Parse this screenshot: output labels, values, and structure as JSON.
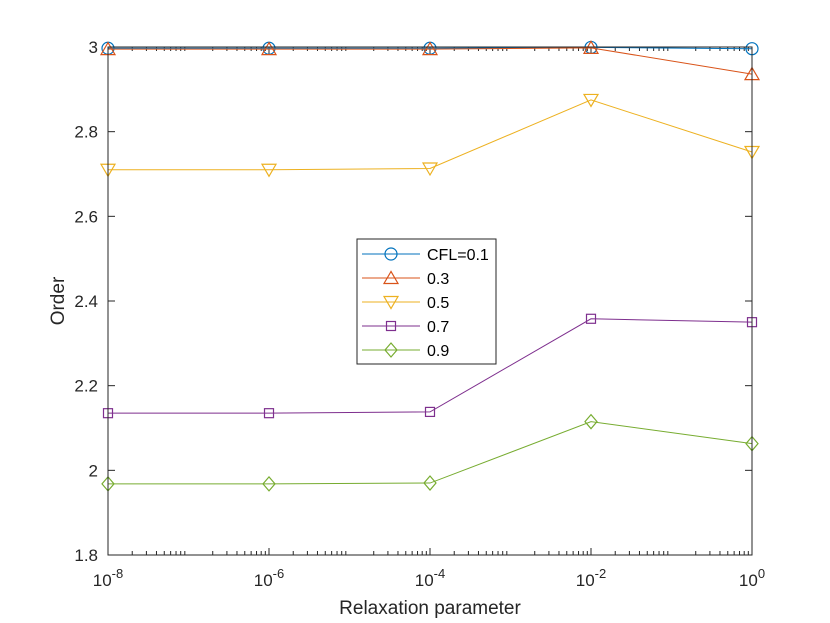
{
  "chart_data": {
    "type": "line",
    "xscale": "log",
    "x": [
      1e-08,
      1e-06,
      0.0001,
      0.01,
      1
    ],
    "x_tick_labels": [
      {
        "base": "10",
        "exp": "-8"
      },
      {
        "base": "10",
        "exp": "-6"
      },
      {
        "base": "10",
        "exp": "-4"
      },
      {
        "base": "10",
        "exp": "-2"
      },
      {
        "base": "10",
        "exp": "0"
      }
    ],
    "xlim_exp": [
      -8,
      0
    ],
    "ylim": [
      1.8,
      3.0
    ],
    "y_ticks": [
      1.8,
      2.0,
      2.2,
      2.4,
      2.6,
      2.8,
      3.0
    ],
    "y_tick_labels": [
      "1.8",
      "2",
      "2.2",
      "2.4",
      "2.6",
      "2.8",
      "3"
    ],
    "xlabel": "Relaxation parameter",
    "ylabel": "Order",
    "legend_position": "center",
    "series": [
      {
        "name": "CFL=0.1",
        "color": "#0072BD",
        "marker": "circle",
        "values": [
          2.997,
          2.997,
          2.997,
          2.999,
          2.996
        ]
      },
      {
        "name": "0.3",
        "color": "#D95319",
        "marker": "triangle-up",
        "values": [
          2.995,
          2.995,
          2.995,
          2.998,
          2.936
        ]
      },
      {
        "name": "0.5",
        "color": "#EDB120",
        "marker": "triangle-down",
        "values": [
          2.71,
          2.71,
          2.713,
          2.875,
          2.752
        ]
      },
      {
        "name": "0.7",
        "color": "#7E2F8E",
        "marker": "square",
        "values": [
          2.135,
          2.135,
          2.138,
          2.358,
          2.35
        ]
      },
      {
        "name": "0.9",
        "color": "#77AC30",
        "marker": "diamond",
        "values": [
          1.968,
          1.968,
          1.97,
          2.115,
          2.063
        ]
      }
    ]
  }
}
